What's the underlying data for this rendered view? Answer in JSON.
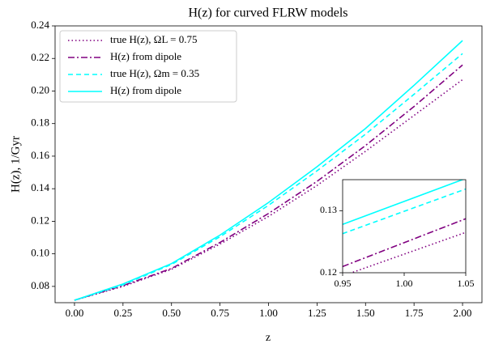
{
  "chart_data": [
    {
      "type": "line",
      "title": "H(z) for curved FLRW models",
      "x_label": "z",
      "y_label": "H(z), 1/Gyr",
      "x": [
        0,
        0.25,
        0.5,
        0.75,
        1.0,
        1.25,
        1.5,
        1.75,
        2.0
      ],
      "series": [
        {
          "name": "true H(z), ΩL = 0.75",
          "color": "#800080",
          "linestyle": "dotted",
          "values": [
            0.0715,
            0.08,
            0.0905,
            0.106,
            0.123,
            0.142,
            0.163,
            0.185,
            0.207
          ]
        },
        {
          "name": "H(z) from dipole",
          "color": "#800080",
          "linestyle": "dashdot",
          "values": [
            0.0715,
            0.0805,
            0.091,
            0.107,
            0.1248,
            0.1445,
            0.1665,
            0.1905,
            0.216
          ]
        },
        {
          "name": "true H(z), Ωm = 0.35",
          "color": "#00ffff",
          "linestyle": "dashed",
          "values": [
            0.0715,
            0.081,
            0.0935,
            0.1105,
            0.1298,
            0.151,
            0.1735,
            0.198,
            0.223
          ]
        },
        {
          "name": "H(z) from dipole",
          "color": "#00ffff",
          "linestyle": "solid",
          "values": [
            0.0715,
            0.0815,
            0.094,
            0.1115,
            0.1315,
            0.1535,
            0.177,
            0.2035,
            0.231
          ]
        }
      ],
      "xlim": [
        -0.1,
        2.1
      ],
      "xticks": [
        {
          "value": 0,
          "label": "0.00"
        },
        0.25,
        {
          "value": 0.5,
          "label": "0.50"
        },
        0.75,
        {
          "value": 1,
          "label": "1.00"
        },
        1.25,
        {
          "value": 1.5,
          "label": "1.50"
        },
        1.75,
        {
          "value": 2,
          "label": "2.00"
        }
      ],
      "ylim": [
        0.07,
        0.24
      ],
      "yticks": [
        0.08,
        {
          "value": 0.1,
          "label": "0.10"
        },
        0.12,
        0.14,
        0.16,
        0.18,
        {
          "value": 0.2,
          "label": "0.20"
        },
        0.22,
        0.24
      ],
      "legend": "upper left"
    },
    {
      "type": "line",
      "x": [
        0.95,
        1.05
      ],
      "series": [
        {
          "color": "#800080",
          "linestyle": "dotted",
          "values": [
            0.1195,
            0.1265
          ]
        },
        {
          "color": "#800080",
          "linestyle": "dashdot",
          "values": [
            0.121,
            0.1287
          ]
        },
        {
          "color": "#00ffff",
          "linestyle": "dashed",
          "values": [
            0.1263,
            0.1335
          ]
        },
        {
          "color": "#00ffff",
          "linestyle": "solid",
          "values": [
            0.1278,
            0.1352
          ]
        }
      ],
      "xlim": [
        0.95,
        1.05
      ],
      "xticks": [
        0.95,
        {
          "value": 1,
          "label": "1.00"
        },
        1.05
      ],
      "ylim": [
        0.12,
        0.135
      ],
      "yticks": [
        0.12,
        0.13
      ]
    }
  ]
}
